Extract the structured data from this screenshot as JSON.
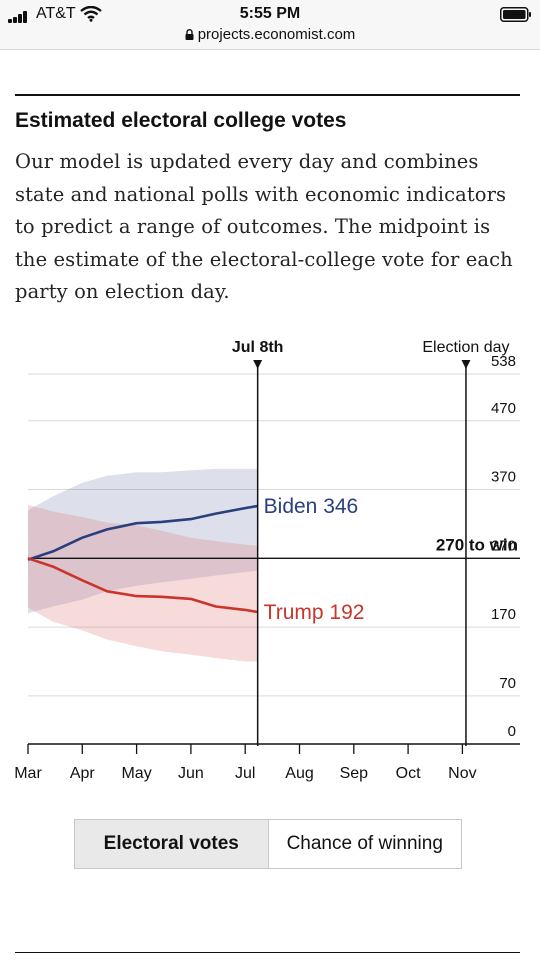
{
  "status_bar": {
    "carrier": "AT&T",
    "time": "5:55 PM",
    "url": "projects.economist.com",
    "icons": [
      "signal-icon",
      "wifi-icon",
      "battery-icon",
      "lock-icon"
    ]
  },
  "section": {
    "title": "Estimated electoral college votes",
    "description": "Our model is updated every day and combines state and national polls with economic indicators to predict a range of outcomes. The midpoint is the estimate of the electoral-college vote for each party on election day."
  },
  "toggle": {
    "options": [
      "Electoral votes",
      "Chance of winning"
    ],
    "selected": "Electoral votes"
  },
  "chart_data": {
    "type": "line",
    "title": "Estimated electoral college votes",
    "xlabel": "",
    "ylabel": "",
    "x_ticks": [
      "Mar",
      "Apr",
      "May",
      "Jun",
      "Jul",
      "Aug",
      "Sep",
      "Oct",
      "Nov"
    ],
    "x_range": [
      "Mar 1",
      "Nov 30"
    ],
    "y_ticks": [
      0,
      70,
      170,
      270,
      370,
      470,
      538
    ],
    "ylim": [
      0,
      538
    ],
    "grid": true,
    "markers": [
      {
        "label": "Jul 8th",
        "date": "Jul 8"
      },
      {
        "label": "Election day",
        "date": "Nov 3"
      }
    ],
    "threshold": {
      "label": "270 to win",
      "value": 270
    },
    "x": [
      "Mar 1",
      "Mar 15",
      "Apr 1",
      "Apr 15",
      "May 1",
      "May 15",
      "Jun 1",
      "Jun 15",
      "Jul 1",
      "Jul 8"
    ],
    "series": [
      {
        "name": "Biden",
        "end_label": "Biden 346",
        "color": "#2a3f7d",
        "values": [
          268,
          280,
          300,
          312,
          321,
          323,
          327,
          335,
          343,
          346
        ],
        "upper": [
          340,
          360,
          380,
          390,
          395,
          395,
          398,
          400,
          400,
          400
        ],
        "lower": [
          190,
          200,
          210,
          222,
          230,
          235,
          240,
          245,
          250,
          252
        ]
      },
      {
        "name": "Trump",
        "end_label": "Trump 192",
        "color": "#c9352b",
        "values": [
          270,
          258,
          238,
          222,
          215,
          214,
          211,
          200,
          195,
          192
        ],
        "upper": [
          348,
          338,
          330,
          322,
          318,
          310,
          300,
          295,
          290,
          288
        ],
        "lower": [
          198,
          178,
          165,
          152,
          142,
          135,
          130,
          125,
          120,
          120
        ]
      }
    ]
  }
}
